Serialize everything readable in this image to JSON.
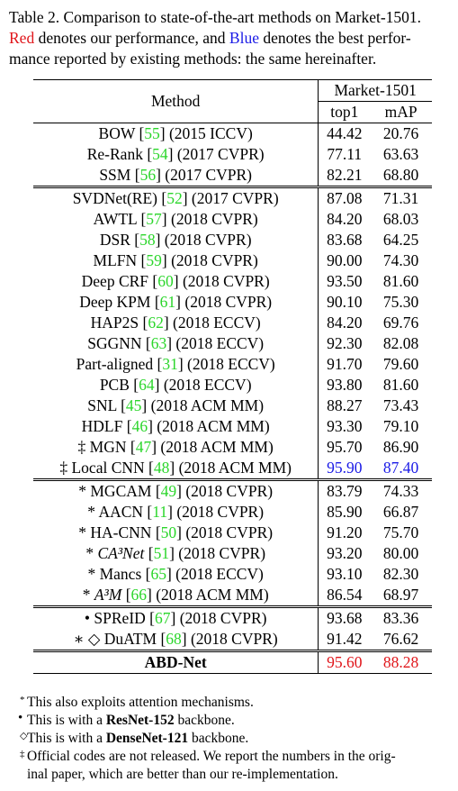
{
  "caption": {
    "label": "Table 2. Comparison to state-of-the-art methods on Market-1501.",
    "red_word": "Red",
    "mid": " denotes our performance, and ",
    "blue_word": "Blue",
    "rest": " denotes the best perfor-",
    "line3": "mance reported by existing methods: the same hereinafter."
  },
  "colors": {
    "red": "#e0161b",
    "blue": "#1a1ae6",
    "green": "#2bd62b"
  },
  "table": {
    "col_method": "Method",
    "col_dataset": "Market-1501",
    "col_top1": "top1",
    "col_map": "mAP",
    "groups": [
      [
        {
          "prefix": "",
          "name": "BOW",
          "ref": "55",
          "venue": "(2015 ICCV)",
          "top1": "44.42",
          "map": "20.76"
        },
        {
          "prefix": "",
          "name": "Re-Rank",
          "ref": "54",
          "venue": "(2017 CVPR)",
          "top1": "77.11",
          "map": "63.63"
        },
        {
          "prefix": "",
          "name": "SSM",
          "ref": "56",
          "venue": "(2017 CVPR)",
          "top1": "82.21",
          "map": "68.80"
        }
      ],
      [
        {
          "prefix": "",
          "name": "SVDNet(RE)",
          "ref": "52",
          "venue": "(2017 CVPR)",
          "top1": "87.08",
          "map": "71.31"
        },
        {
          "prefix": "",
          "name": "AWTL",
          "ref": "57",
          "venue": "(2018 CVPR)",
          "top1": "84.20",
          "map": "68.03"
        },
        {
          "prefix": "",
          "name": "DSR",
          "ref": "58",
          "venue": "(2018 CVPR)",
          "top1": "83.68",
          "map": "64.25"
        },
        {
          "prefix": "",
          "name": "MLFN",
          "ref": "59",
          "venue": "(2018 CVPR)",
          "top1": "90.00",
          "map": "74.30"
        },
        {
          "prefix": "",
          "name": "Deep CRF",
          "ref": "60",
          "venue": "(2018 CVPR)",
          "top1": "93.50",
          "map": "81.60"
        },
        {
          "prefix": "",
          "name": "Deep KPM",
          "ref": "61",
          "venue": "(2018 CVPR)",
          "top1": "90.10",
          "map": "75.30"
        },
        {
          "prefix": "",
          "name": "HAP2S",
          "ref": "62",
          "venue": "(2018 ECCV)",
          "top1": "84.20",
          "map": "69.76"
        },
        {
          "prefix": "",
          "name": "SGGNN",
          "ref": "63",
          "venue": "(2018 ECCV)",
          "top1": "92.30",
          "map": "82.08"
        },
        {
          "prefix": "",
          "name": "Part-aligned",
          "ref": "31",
          "venue": "(2018 ECCV)",
          "top1": "91.70",
          "map": "79.60"
        },
        {
          "prefix": "",
          "name": "PCB",
          "ref": "64",
          "venue": "(2018 ECCV)",
          "top1": "93.80",
          "map": "81.60"
        },
        {
          "prefix": "",
          "name": "SNL",
          "ref": "45",
          "venue": "(2018 ACM MM)",
          "top1": "88.27",
          "map": "73.43"
        },
        {
          "prefix": "",
          "name": "HDLF",
          "ref": "46",
          "venue": "(2018 ACM MM)",
          "top1": "93.30",
          "map": "79.10"
        },
        {
          "prefix": "‡ ",
          "name": "MGN",
          "ref": "47",
          "venue": "(2018 ACM MM)",
          "top1": "95.70",
          "map": "86.90"
        },
        {
          "prefix": "‡ ",
          "name": "Local CNN",
          "ref": "48",
          "venue": "(2018 ACM MM)",
          "top1": "95.90",
          "map": "87.40",
          "highlight": "blue"
        }
      ],
      [
        {
          "prefix": "* ",
          "name": "MGCAM",
          "ref": "49",
          "venue": "(2018 CVPR)",
          "top1": "83.79",
          "map": "74.33"
        },
        {
          "prefix": "* ",
          "name": "AACN",
          "ref": "11",
          "venue": "(2018 CVPR)",
          "top1": "85.90",
          "map": "66.87"
        },
        {
          "prefix": "* ",
          "name": "HA-CNN",
          "ref": "50",
          "venue": "(2018 CVPR)",
          "top1": "91.20",
          "map": "75.70"
        },
        {
          "prefix": "* ",
          "name": "CA³Net",
          "ref": "51",
          "venue": "(2018 CVPR)",
          "top1": "93.20",
          "map": "80.00"
        },
        {
          "prefix": "* ",
          "name": "Mancs",
          "ref": "65",
          "venue": "(2018 ECCV)",
          "top1": "93.10",
          "map": "82.30"
        },
        {
          "prefix": "* ",
          "name": "A³M",
          "ref": "66",
          "venue": "(2018 ACM MM)",
          "top1": "86.54",
          "map": "68.97"
        }
      ],
      [
        {
          "prefix": "• ",
          "name": "SPReID",
          "ref": "67",
          "venue": "(2018 CVPR)",
          "top1": "93.68",
          "map": "83.36"
        },
        {
          "prefix": "∗ ◇ ",
          "name": "DuATM",
          "ref": "68",
          "venue": "(2018 CVPR)",
          "top1": "91.42",
          "map": "76.62"
        }
      ]
    ],
    "ours": {
      "name": "ABD-Net",
      "top1": "95.60",
      "map": "88.28"
    }
  },
  "notes": [
    {
      "sym": "*",
      "text": "This also exploits attention mechanisms."
    },
    {
      "sym": "•",
      "pre": "This is with a ",
      "bold": "ResNet-152",
      "post": " backbone."
    },
    {
      "sym": "◇",
      "pre": "This is with a ",
      "bold": "DenseNet-121",
      "post": " backbone."
    },
    {
      "sym": "‡",
      "text": "Official codes are not released. We report the numbers in the orig-",
      "text2": "inal paper, which are better than our re-implementation."
    }
  ]
}
